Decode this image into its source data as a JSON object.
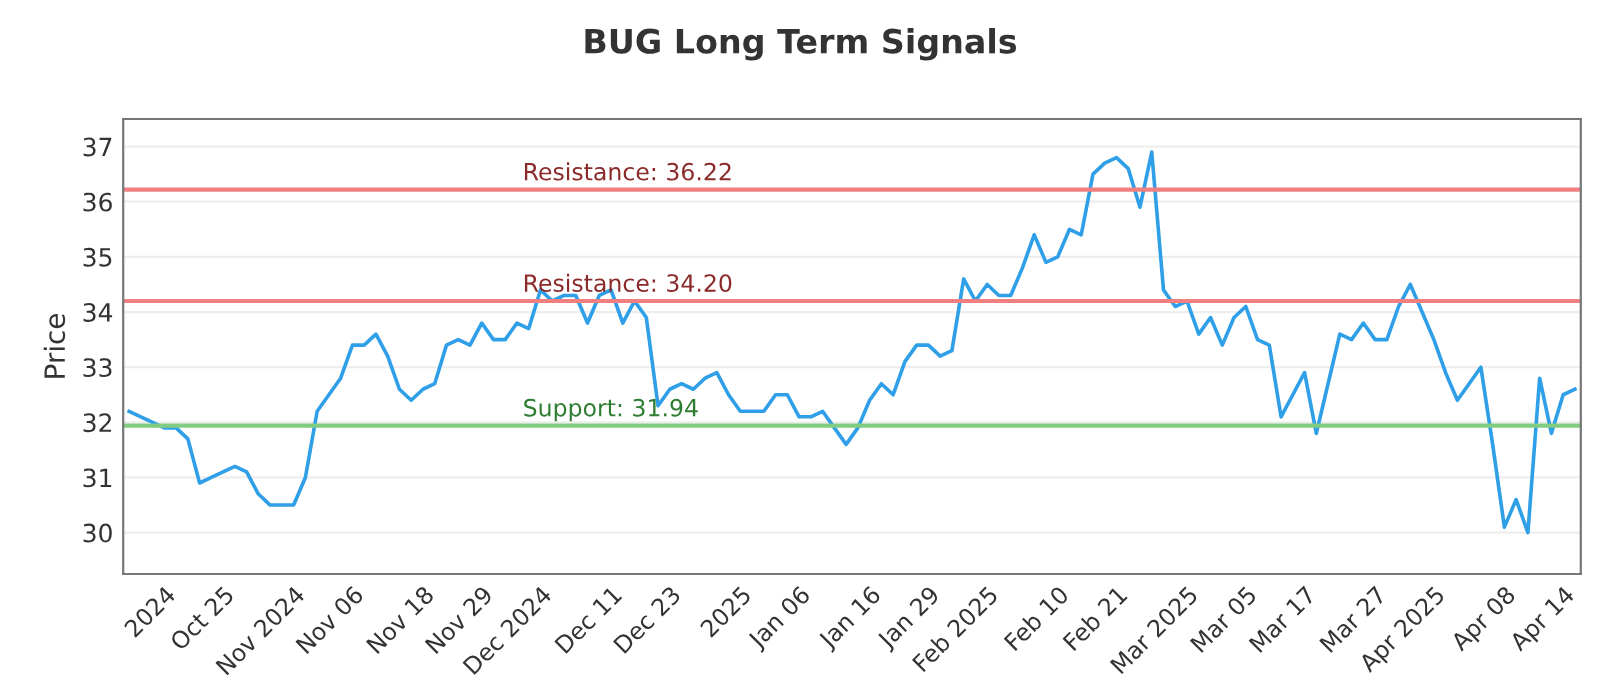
{
  "chart_data": {
    "type": "line",
    "title": "BUG Long Term Signals",
    "ylabel": "Price",
    "categories": [
      null,
      null,
      null,
      "2024",
      null,
      null,
      null,
      null,
      "Oct 25",
      null,
      null,
      null,
      null,
      null,
      "Nov 2024",
      null,
      null,
      null,
      null,
      "Nov 06",
      null,
      null,
      null,
      null,
      null,
      "Nov 18",
      null,
      null,
      null,
      null,
      "Nov 29",
      null,
      null,
      null,
      null,
      "Dec 2024",
      null,
      null,
      null,
      null,
      null,
      "Dec 11",
      null,
      null,
      null,
      null,
      "Dec 23",
      null,
      null,
      null,
      null,
      null,
      "2025",
      null,
      null,
      null,
      null,
      "Jan 06",
      null,
      null,
      null,
      null,
      null,
      "Jan 16",
      null,
      null,
      null,
      null,
      "Jan 29",
      null,
      null,
      null,
      null,
      "Feb 2025",
      null,
      null,
      null,
      null,
      null,
      "Feb 10",
      null,
      null,
      null,
      null,
      "Feb 21",
      null,
      null,
      null,
      null,
      null,
      "Mar 2025",
      null,
      null,
      null,
      null,
      "Mar 05",
      null,
      null,
      null,
      null,
      "Mar 17",
      null,
      null,
      null,
      null,
      null,
      "Mar 27",
      null,
      null,
      null,
      null,
      "Apr 2025",
      null,
      null,
      null,
      null,
      null,
      "Apr 08",
      null,
      null,
      null,
      null,
      "Apr 14",
      null
    ],
    "series": [
      {
        "color": "#2f9fe8",
        "values": [
          32.2,
          32.1,
          32.0,
          31.9,
          31.9,
          31.7,
          30.9,
          31.0,
          31.1,
          31.2,
          31.1,
          30.7,
          30.5,
          30.5,
          30.5,
          31.0,
          32.2,
          32.5,
          32.8,
          33.4,
          33.4,
          33.6,
          33.2,
          32.6,
          32.4,
          32.6,
          32.7,
          33.4,
          33.5,
          33.4,
          33.8,
          33.5,
          33.5,
          33.8,
          33.7,
          34.4,
          34.2,
          34.3,
          34.3,
          33.8,
          34.3,
          34.4,
          33.8,
          34.2,
          33.9,
          32.3,
          32.6,
          32.7,
          32.6,
          32.8,
          32.9,
          32.5,
          32.2,
          32.2,
          32.2,
          32.5,
          32.5,
          32.1,
          32.1,
          32.2,
          31.9,
          31.6,
          31.9,
          32.4,
          32.7,
          32.5,
          33.1,
          33.4,
          33.4,
          33.2,
          33.3,
          34.6,
          34.2,
          34.5,
          34.3,
          34.3,
          34.8,
          35.4,
          34.9,
          35.0,
          35.5,
          35.4,
          36.5,
          36.7,
          36.8,
          36.6,
          35.9,
          36.9,
          34.4,
          34.1,
          34.2,
          33.6,
          33.9,
          33.4,
          33.9,
          34.1,
          33.5,
          33.4,
          32.1,
          32.5,
          32.9,
          31.8,
          32.7,
          33.6,
          33.5,
          33.8,
          33.5,
          33.5,
          34.1,
          34.5,
          34.0,
          33.5,
          32.9,
          32.4,
          32.7,
          33.0,
          31.6,
          30.1,
          30.6,
          30.0,
          32.8,
          31.8,
          32.5,
          32.6
        ]
      }
    ],
    "ylim": [
      29.25,
      37.5
    ],
    "yticks": [
      30,
      31,
      32,
      33,
      34,
      35,
      36,
      37
    ],
    "grid": "y",
    "ref_lines": [
      {
        "axis": "y",
        "value": 36.22,
        "label": "Resistance: 36.22",
        "color": "#f08080"
      },
      {
        "axis": "y",
        "value": 34.2,
        "label": "Resistance: 34.20",
        "color": "#f08080"
      },
      {
        "axis": "y",
        "value": 31.94,
        "label": "Support: 31.94",
        "color": "#80cc80"
      }
    ]
  }
}
